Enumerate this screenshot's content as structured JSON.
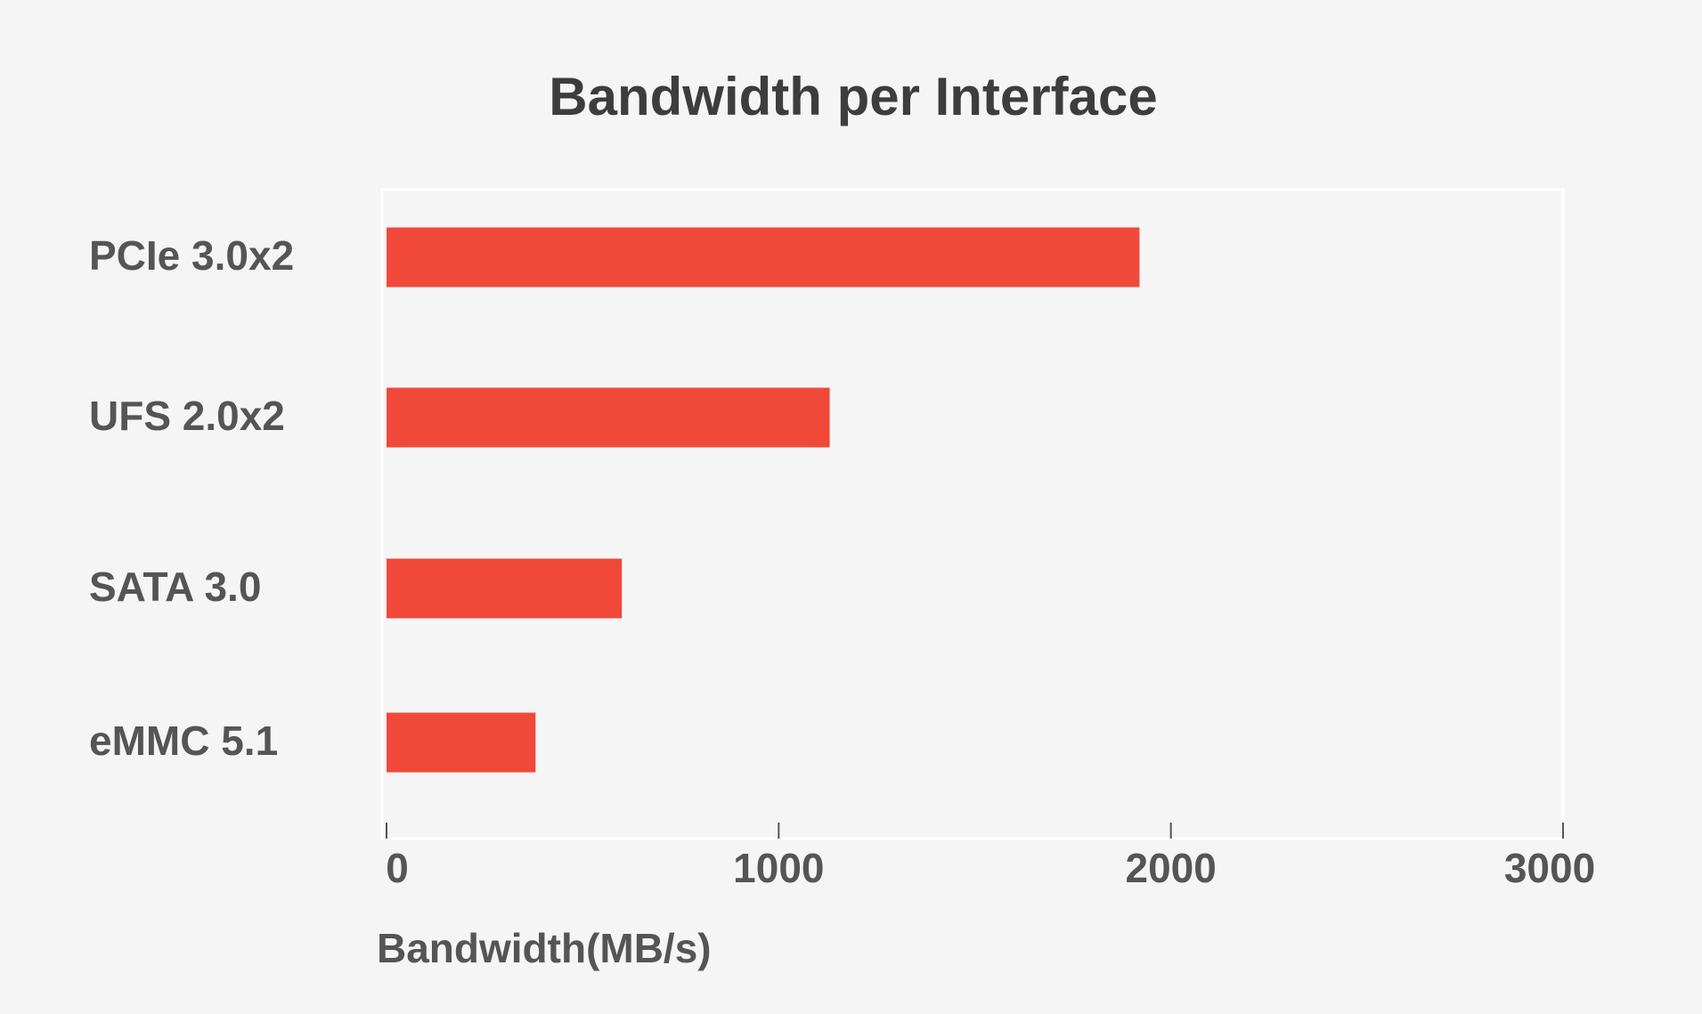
{
  "chart_data": {
    "type": "hbar",
    "title": "Bandwidth per Interface",
    "x_label": "Bandwidth(MB/s)",
    "categories": [
      "PCIe 3.0x2",
      "UFS 2.0x2",
      "SATA 3.0",
      "eMMC 5.1"
    ],
    "values": [
      1920,
      1130,
      600,
      380
    ],
    "color": "#f0493a",
    "xlim": [
      0,
      3000
    ],
    "xticks": [
      0,
      1000,
      2000,
      3000
    ]
  }
}
